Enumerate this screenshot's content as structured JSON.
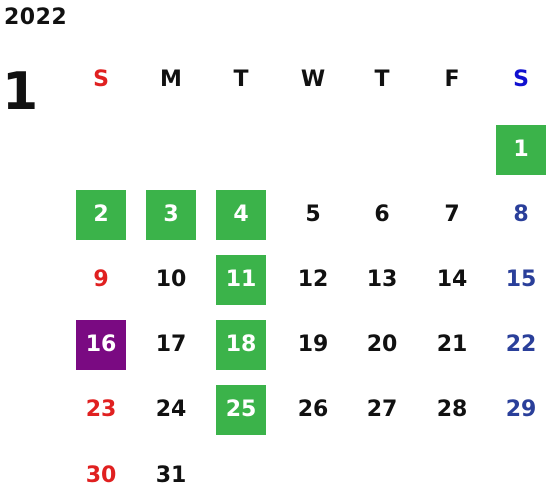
{
  "calendar": {
    "year": "2022",
    "month": "1",
    "weekdays": [
      {
        "label": "S",
        "kind": "sun"
      },
      {
        "label": "M",
        "kind": "weekday"
      },
      {
        "label": "T",
        "kind": "weekday"
      },
      {
        "label": "W",
        "kind": "weekday"
      },
      {
        "label": "T",
        "kind": "weekday"
      },
      {
        "label": "F",
        "kind": "weekday"
      },
      {
        "label": "S",
        "kind": "sat"
      }
    ],
    "first_weekday_index": 6,
    "days_in_month": 31,
    "highlighted_holidays": [
      1,
      2,
      3,
      4,
      11,
      18,
      25
    ],
    "special_days": [
      16
    ],
    "colors": {
      "sunday_text": "#e02020",
      "saturday_header_text": "#1010d0",
      "saturday_text": "#2a3f9a",
      "holiday_bg": "#3bb34a",
      "special_bg": "#7a0a82",
      "default_text": "#111111"
    }
  }
}
